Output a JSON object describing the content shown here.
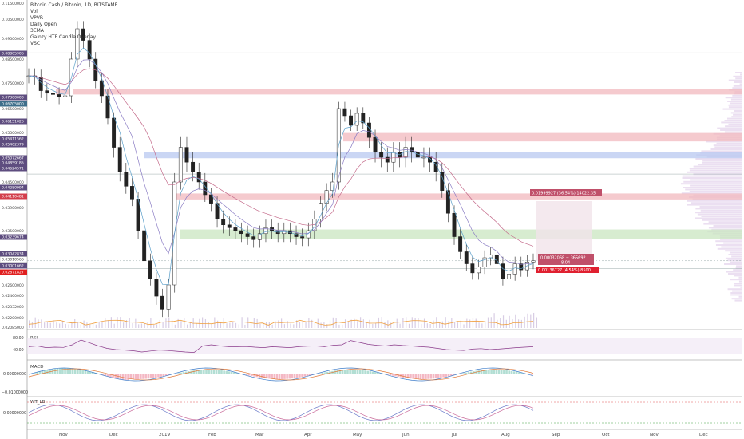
{
  "chart_data": {
    "type": "candlestick",
    "title": "Bitcoin Cash / Bitcoin, 1D, BITSTAMP",
    "overlays": [
      "Vol",
      "VPVR",
      "Daily Open",
      "3EMA",
      "Gainzy HTF Candle Overlay",
      "VSC"
    ],
    "price_axis": {
      "ticks": [
        "0.11500000",
        "0.10500000",
        "0.09500000",
        "0.08500000",
        "0.07500000",
        "0.06500000",
        "0.05500000",
        "0.04500000",
        "0.03900000",
        "0.03500000",
        "0.02600000",
        "0.02460000",
        "0.02332000",
        "0.02200000",
        "0.02085000"
      ],
      "ylim": [
        0.0205,
        0.116
      ]
    },
    "x_labels": [
      "Nov",
      "Dec",
      "2019",
      "Feb",
      "Mar",
      "Apr",
      "May",
      "Jun",
      "Jul",
      "Aug",
      "Sep",
      "Oct",
      "Nov",
      "Dec"
    ],
    "price_labels": [
      {
        "text": "0.08805906",
        "color": "#5e4d7f"
      },
      {
        "text": "0.07300000",
        "color": "#5e4d7f"
      },
      {
        "text": "0.06705000",
        "color": "#3e6e8a"
      },
      {
        "text": "0.06151026",
        "color": "#5e4d7f"
      },
      {
        "text": "0.05411562",
        "color": "#5e4d7f"
      },
      {
        "text": "0.05402379",
        "color": "#5e4d7f"
      },
      {
        "text": "0.05072667",
        "color": "#5e4d7f"
      },
      {
        "text": "0.04859185",
        "color": "#5e4d7f"
      },
      {
        "text": "0.04624571",
        "color": "#5e4d7f"
      },
      {
        "text": "0.04280994",
        "color": "#5e4d7f"
      },
      {
        "text": "0.04110481",
        "color": "#d33f4c"
      },
      {
        "text": "0.03239674",
        "color": "#5e4d7f"
      },
      {
        "text": "0.03042834",
        "color": "#5e4d7f"
      },
      {
        "text": "0.03010566",
        "color": "#ffffff"
      },
      {
        "text": "0.03001662",
        "color": "#5e4d7f"
      },
      {
        "text": "0.02871827",
        "color": "#e02020"
      }
    ],
    "zones": [
      {
        "name": "resistance-1",
        "from": 0.0725,
        "to": 0.0705,
        "color": "#f2b8bd"
      },
      {
        "name": "resistance-2",
        "from": 0.0549,
        "to": 0.0532,
        "color": "#f2b8bd"
      },
      {
        "name": "demand-blue",
        "from": 0.051,
        "to": 0.0498,
        "color": "#b8c8f0"
      },
      {
        "name": "resistance-3",
        "from": 0.0423,
        "to": 0.0409,
        "color": "#f2b8bd"
      },
      {
        "name": "support-green",
        "from": 0.0352,
        "to": 0.0336,
        "color": "#c9e6c0"
      }
    ],
    "measure": {
      "label_top": "0.01999927 (36.54%) 14022.35",
      "label_mid": "0.00032068 − 365692",
      "label_mid2": "8.04",
      "label_bot": "0.00136727 (4.54%) 8500"
    },
    "price_series": [
      0.078,
      0.0775,
      0.072,
      0.071,
      0.0705,
      0.0695,
      0.07,
      0.085,
      0.1,
      0.094,
      0.085,
      0.076,
      0.07,
      0.061,
      0.052,
      0.047,
      0.044,
      0.041,
      0.035,
      0.03,
      0.027,
      0.0245,
      0.023,
      0.026,
      0.045,
      0.052,
      0.049,
      0.047,
      0.045,
      0.042,
      0.04,
      0.037,
      0.036,
      0.0355,
      0.035,
      0.0345,
      0.034,
      0.0335,
      0.0345,
      0.0355,
      0.035,
      0.0345,
      0.035,
      0.0345,
      0.034,
      0.0338,
      0.035,
      0.037,
      0.04,
      0.043,
      0.045,
      0.065,
      0.062,
      0.058,
      0.063,
      0.059,
      0.054,
      0.051,
      0.05,
      0.049,
      0.051,
      0.05,
      0.052,
      0.051,
      0.05,
      0.05,
      0.049,
      0.047,
      0.043,
      0.038,
      0.034,
      0.0315,
      0.0295,
      0.028,
      0.029,
      0.0305,
      0.031,
      0.0295,
      0.027,
      0.0278,
      0.0295,
      0.0285,
      0.0298,
      0.03
    ],
    "rsi": {
      "label": "RSI",
      "ticks": [
        "80.00",
        "40.00"
      ],
      "values": [
        52,
        55,
        48,
        50,
        49,
        60,
        80,
        68,
        55,
        45,
        40,
        38,
        35,
        30,
        34,
        38,
        36,
        33,
        30,
        28,
        55,
        60,
        55,
        52,
        52,
        53,
        50,
        48,
        52,
        50,
        48,
        52,
        54,
        55,
        52,
        58,
        60,
        78,
        70,
        62,
        58,
        55,
        60,
        57,
        55,
        52,
        50,
        45,
        40,
        38,
        36,
        42,
        44,
        40,
        42,
        45,
        48,
        50,
        52
      ]
    },
    "macd": {
      "label": "MACD",
      "ticks": [
        "0.00000000",
        "−0.01000000"
      ]
    },
    "wt": {
      "label": "WT_LB",
      "ticks": [
        "0.00000000"
      ]
    }
  }
}
